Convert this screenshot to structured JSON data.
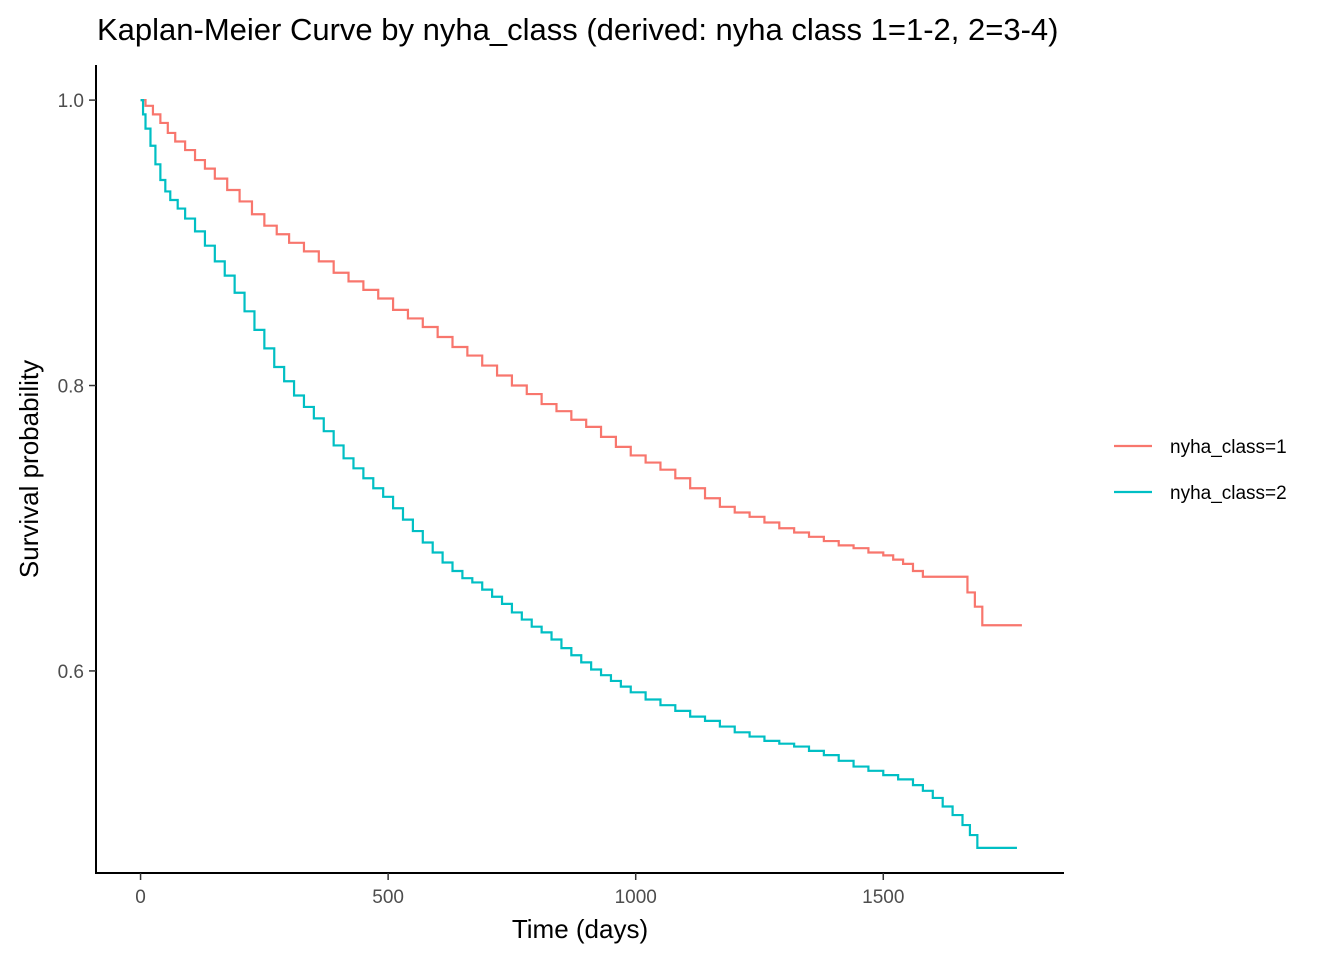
{
  "chart_data": {
    "type": "line",
    "title": "Kaplan-Meier Curve by nyha_class (derived: nyha class 1=1-2, 2=3-4)",
    "xlabel": "Time (days)",
    "ylabel": "Survival probability",
    "xlim": [
      -90,
      1865
    ],
    "ylim": [
      0.4584,
      1.0246
    ],
    "x_ticks": [
      0,
      500,
      1000,
      1500
    ],
    "y_ticks": [
      0.6,
      0.8,
      1.0
    ],
    "x_tick_labels": [
      "0",
      "500",
      "1000",
      "1500"
    ],
    "y_tick_labels": [
      "0.6",
      "0.8",
      "1.0"
    ],
    "grid": false,
    "legend_position": "right",
    "step": true,
    "series": [
      {
        "name": "nyha_class=1",
        "color": "#F8766D",
        "x": [
          0,
          10,
          25,
          40,
          55,
          70,
          90,
          110,
          130,
          150,
          175,
          200,
          225,
          250,
          275,
          300,
          330,
          360,
          390,
          420,
          450,
          480,
          510,
          540,
          570,
          600,
          630,
          660,
          690,
          720,
          750,
          780,
          810,
          840,
          870,
          900,
          930,
          960,
          990,
          1020,
          1050,
          1080,
          1110,
          1140,
          1170,
          1200,
          1230,
          1260,
          1290,
          1320,
          1350,
          1380,
          1410,
          1440,
          1470,
          1500,
          1520,
          1540,
          1560,
          1580,
          1600,
          1620,
          1640,
          1660,
          1670,
          1685,
          1700,
          1780
        ],
        "y": [
          1.0,
          0.996,
          0.99,
          0.984,
          0.977,
          0.971,
          0.965,
          0.958,
          0.952,
          0.945,
          0.937,
          0.929,
          0.92,
          0.912,
          0.906,
          0.9,
          0.894,
          0.887,
          0.879,
          0.873,
          0.867,
          0.861,
          0.853,
          0.847,
          0.841,
          0.834,
          0.827,
          0.821,
          0.814,
          0.807,
          0.8,
          0.794,
          0.787,
          0.782,
          0.776,
          0.771,
          0.764,
          0.757,
          0.751,
          0.746,
          0.741,
          0.735,
          0.728,
          0.721,
          0.715,
          0.711,
          0.708,
          0.704,
          0.7,
          0.697,
          0.694,
          0.691,
          0.688,
          0.686,
          0.683,
          0.681,
          0.678,
          0.675,
          0.67,
          0.666,
          0.666,
          0.666,
          0.666,
          0.666,
          0.655,
          0.645,
          0.632,
          0.632
        ]
      },
      {
        "name": "nyha_class=2",
        "color": "#00BFC4",
        "x": [
          0,
          5,
          10,
          20,
          30,
          40,
          50,
          60,
          75,
          90,
          110,
          130,
          150,
          170,
          190,
          210,
          230,
          250,
          270,
          290,
          310,
          330,
          350,
          370,
          390,
          410,
          430,
          450,
          470,
          490,
          510,
          530,
          550,
          570,
          590,
          610,
          630,
          650,
          670,
          690,
          710,
          730,
          750,
          770,
          790,
          810,
          830,
          850,
          870,
          890,
          910,
          930,
          950,
          970,
          990,
          1020,
          1050,
          1080,
          1110,
          1140,
          1170,
          1200,
          1230,
          1260,
          1290,
          1320,
          1350,
          1380,
          1410,
          1440,
          1470,
          1500,
          1530,
          1560,
          1580,
          1600,
          1620,
          1640,
          1660,
          1675,
          1690,
          1770
        ],
        "y": [
          1.0,
          0.99,
          0.98,
          0.968,
          0.955,
          0.944,
          0.936,
          0.93,
          0.924,
          0.917,
          0.908,
          0.898,
          0.887,
          0.877,
          0.865,
          0.852,
          0.839,
          0.826,
          0.813,
          0.803,
          0.793,
          0.785,
          0.777,
          0.768,
          0.758,
          0.749,
          0.742,
          0.735,
          0.728,
          0.722,
          0.714,
          0.706,
          0.698,
          0.69,
          0.683,
          0.676,
          0.67,
          0.665,
          0.662,
          0.657,
          0.652,
          0.647,
          0.641,
          0.636,
          0.631,
          0.627,
          0.622,
          0.616,
          0.611,
          0.606,
          0.601,
          0.597,
          0.593,
          0.589,
          0.585,
          0.58,
          0.576,
          0.572,
          0.568,
          0.565,
          0.561,
          0.557,
          0.554,
          0.551,
          0.549,
          0.547,
          0.544,
          0.541,
          0.537,
          0.533,
          0.53,
          0.527,
          0.524,
          0.52,
          0.516,
          0.511,
          0.505,
          0.499,
          0.492,
          0.485,
          0.476,
          0.476
        ]
      }
    ]
  }
}
